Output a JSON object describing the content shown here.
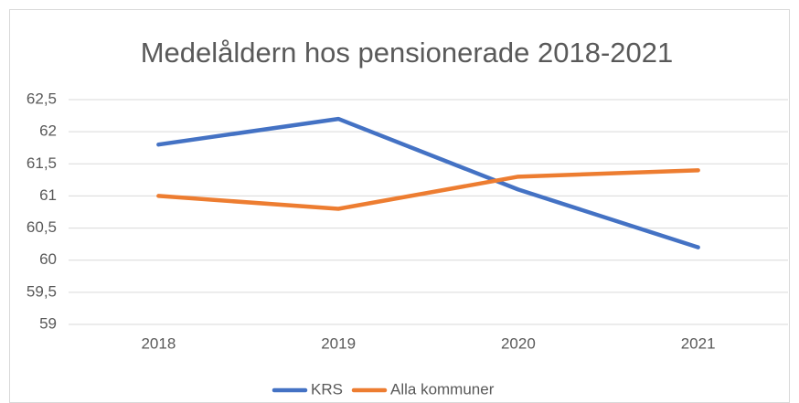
{
  "chart_data": {
    "type": "line",
    "title": "Medelåldern hos pensionerade 2018-2021",
    "categories": [
      "2018",
      "2019",
      "2020",
      "2021"
    ],
    "series": [
      {
        "name": "KRS",
        "color": "#4472c4",
        "values": [
          61.8,
          62.2,
          61.1,
          60.2
        ]
      },
      {
        "name": "Alla kommuner",
        "color": "#ed7d31",
        "values": [
          61.0,
          60.8,
          61.3,
          61.4
        ]
      }
    ],
    "ylim": [
      59,
      62.5
    ],
    "yticks": [
      59,
      {
        "value": 59.5,
        "label": "59,5"
      },
      60,
      {
        "value": 60.5,
        "label": "60,5"
      },
      61,
      {
        "value": 61.5,
        "label": "61,5"
      },
      62,
      {
        "value": 62.5,
        "label": "62,5"
      }
    ],
    "grid": true,
    "legend": "bottom"
  }
}
